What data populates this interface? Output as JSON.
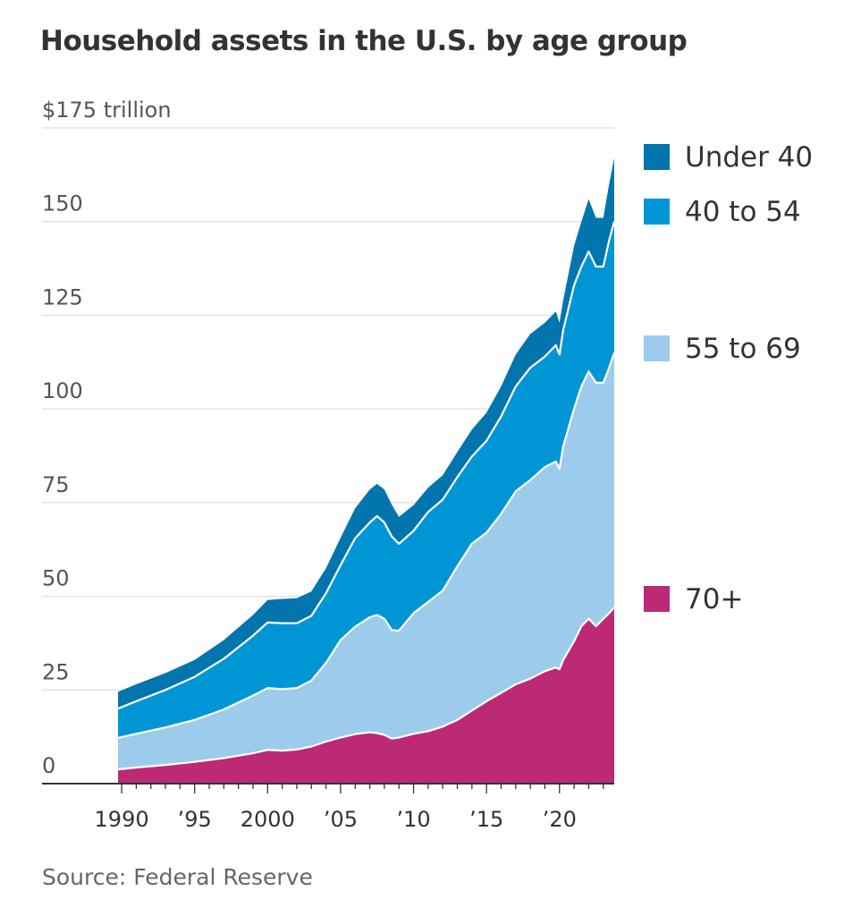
{
  "chart_data": {
    "type": "area",
    "stacked": true,
    "title": "Household assets in the U.S. by age group",
    "source": "Source: Federal Reserve",
    "y_unit_label": "$175 trillion",
    "ylim": [
      0,
      175
    ],
    "yticks": [
      0,
      25,
      50,
      75,
      100,
      125,
      150,
      175
    ],
    "ytick_labels": [
      "0",
      "25",
      "50",
      "75",
      "100",
      "125",
      "150",
      "$175 trillion"
    ],
    "xlim": [
      1989.75,
      2023.75
    ],
    "xticks": [
      1990,
      1995,
      2000,
      2005,
      2010,
      2015,
      2020
    ],
    "xtick_labels": [
      "1990",
      "’95",
      "2000",
      "’05",
      "’10",
      "’15",
      "’20"
    ],
    "grid": true,
    "legend_position": "right",
    "x": [
      1989.75,
      1991,
      1993,
      1995,
      1997,
      1999,
      2000,
      2001,
      2002,
      2003,
      2004,
      2005,
      2006,
      2007,
      2007.5,
      2008,
      2008.5,
      2009,
      2010,
      2011,
      2012,
      2013,
      2014,
      2015,
      2016,
      2017,
      2018,
      2019,
      2019.75,
      2020,
      2020.25,
      2021,
      2021.5,
      2022,
      2022.5,
      2023,
      2023.4,
      2023.75
    ],
    "series": [
      {
        "name": "70+",
        "color": "#bc2a75",
        "values": [
          3.8,
          4.3,
          5.0,
          5.8,
          6.8,
          8.1,
          9.0,
          8.8,
          9.1,
          9.9,
          11.2,
          12.3,
          13.2,
          13.7,
          13.5,
          13.0,
          12.0,
          12.3,
          13.3,
          14.0,
          15.2,
          17.0,
          19.5,
          22.0,
          24.2,
          26.5,
          28.0,
          30.0,
          31.0,
          30.5,
          33.0,
          38.0,
          42.0,
          44.0,
          42.0,
          44.0,
          45.5,
          47.0
        ]
      },
      {
        "name": "55 to 69",
        "color": "#9ccbec",
        "values": [
          8.4,
          9.0,
          10.0,
          11.2,
          13.0,
          15.4,
          16.5,
          16.4,
          16.4,
          17.6,
          21.0,
          26.0,
          28.7,
          30.7,
          31.5,
          31.0,
          29.0,
          28.5,
          32.2,
          34.5,
          36.3,
          41.0,
          44.5,
          45.0,
          47.8,
          51.5,
          53.0,
          54.5,
          55.0,
          53.5,
          57.0,
          62.0,
          64.0,
          66.0,
          65.0,
          63.0,
          65.5,
          68.0
        ]
      },
      {
        "name": "40 to 54",
        "color": "#0096d6",
        "values": [
          7.8,
          8.7,
          10.0,
          11.5,
          13.5,
          16.0,
          17.5,
          17.6,
          17.3,
          17.3,
          18.6,
          20.0,
          23.6,
          25.3,
          26.4,
          25.7,
          25.0,
          23.2,
          22.0,
          24.0,
          24.3,
          23.8,
          23.3,
          24.5,
          26.0,
          28.0,
          30.0,
          29.5,
          31.0,
          30.5,
          31.0,
          33.0,
          32.0,
          32.0,
          31.0,
          31.0,
          34.0,
          35.0
        ]
      },
      {
        "name": "Under 40",
        "color": "#0275ae",
        "values": [
          4.5,
          4.5,
          4.5,
          4.5,
          5.0,
          5.5,
          6.0,
          6.5,
          6.7,
          6.5,
          6.7,
          7.3,
          8.0,
          8.8,
          8.6,
          8.8,
          8.5,
          7.2,
          6.8,
          6.5,
          6.5,
          6.7,
          7.2,
          7.5,
          8.0,
          8.5,
          9.0,
          9.0,
          9.0,
          8.5,
          8.0,
          10.5,
          12.0,
          14.0,
          13.0,
          13.0,
          15.0,
          17.0
        ]
      }
    ]
  }
}
